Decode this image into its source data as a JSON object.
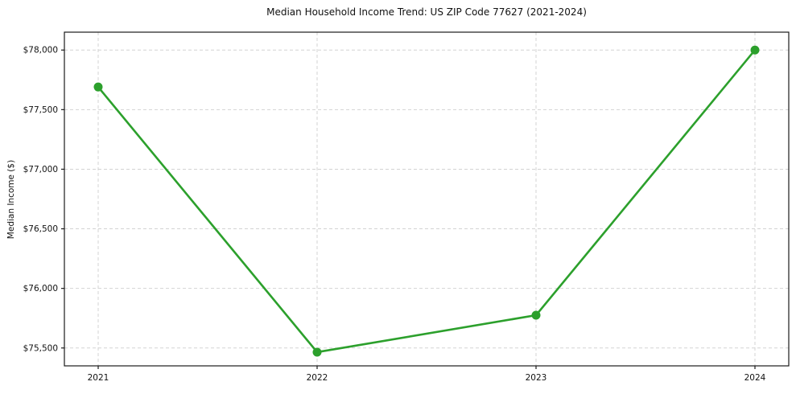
{
  "chart_data": {
    "type": "line",
    "title": "Median Household Income Trend: US ZIP Code 77627 (2021-2024)",
    "xlabel": "",
    "ylabel": "Median Income ($)",
    "categories": [
      "2021",
      "2022",
      "2023",
      "2024"
    ],
    "series": [
      {
        "name": "Median Household Income",
        "values": [
          77690,
          75465,
          75775,
          78000
        ]
      }
    ],
    "yticks": [
      75500,
      76000,
      76500,
      77000,
      77500,
      78000
    ],
    "ytick_labels": [
      "$75,500",
      "$76,000",
      "$76,500",
      "$77,000",
      "$77,500",
      "$78,000"
    ],
    "ylim": [
      75350,
      78150
    ],
    "grid": true,
    "grid_style": "dashed",
    "legend_position": "none",
    "colors": {
      "line": "#2ca02c",
      "marker": "#2ca02c",
      "gridline": "#d3d3d3",
      "spine": "#1a1a1a",
      "text": "#111111",
      "background": "#ffffff"
    }
  }
}
